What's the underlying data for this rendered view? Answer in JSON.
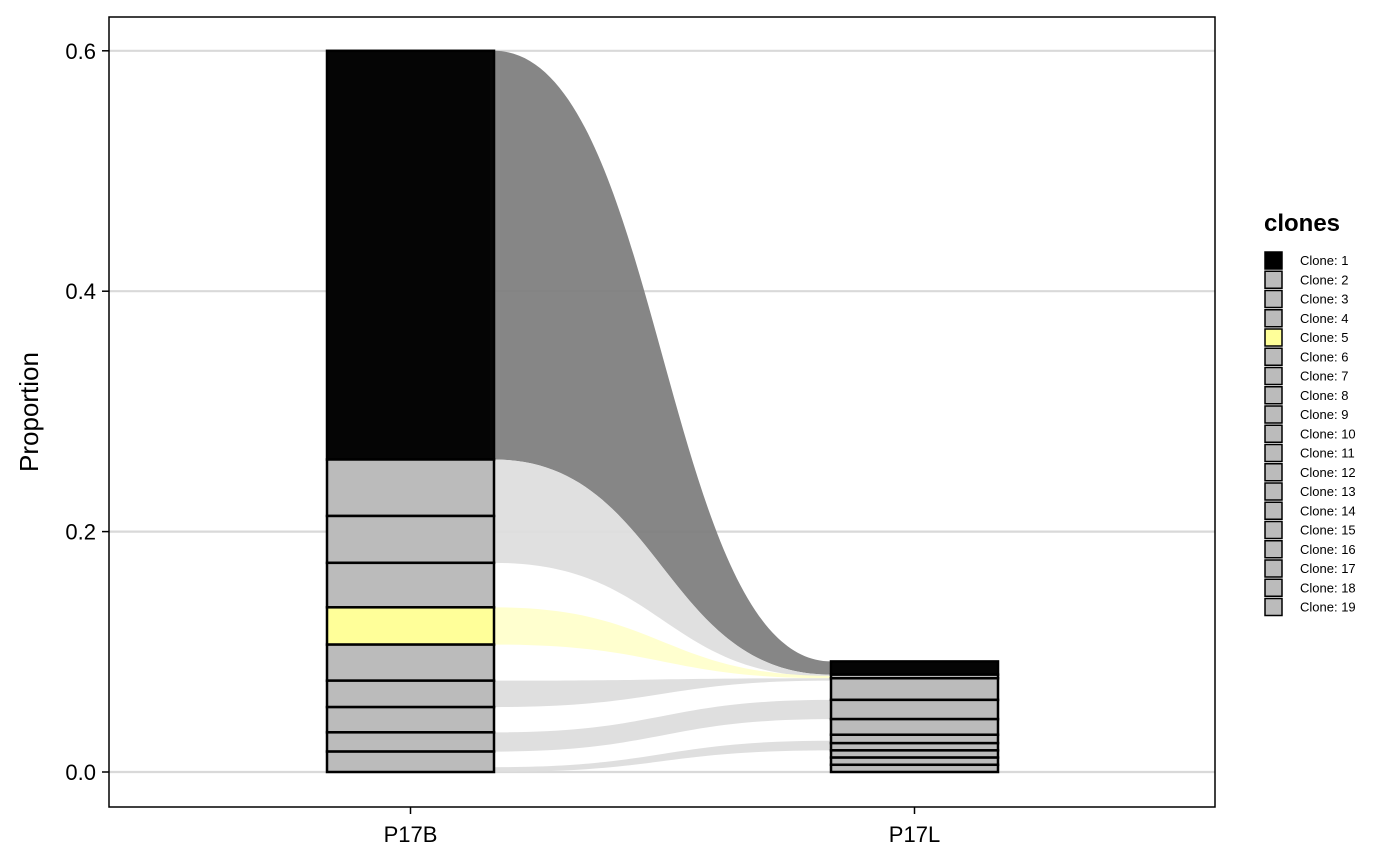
{
  "chart_data": {
    "type": "alluvial",
    "ylabel": "Proportion",
    "xlabel": "",
    "categories": [
      "P17B",
      "P17L"
    ],
    "yticks": [
      "0.0",
      "0.2",
      "0.4",
      "0.6"
    ],
    "ylim": [
      -0.03,
      0.63
    ],
    "grid": "horizontal major lines",
    "legend": {
      "title": "clones",
      "position": "right",
      "items": [
        {
          "label": "Clone: 1",
          "color": "#000000"
        },
        {
          "label": "Clone: 2",
          "color": "#bbbbbb"
        },
        {
          "label": "Clone: 3",
          "color": "#bbbbbb"
        },
        {
          "label": "Clone: 4",
          "color": "#bbbbbb"
        },
        {
          "label": "Clone: 5",
          "color": "#ffff99"
        },
        {
          "label": "Clone: 6",
          "color": "#bbbbbb"
        },
        {
          "label": "Clone: 7",
          "color": "#bbbbbb"
        },
        {
          "label": "Clone: 8",
          "color": "#bbbbbb"
        },
        {
          "label": "Clone: 9",
          "color": "#bbbbbb"
        },
        {
          "label": "Clone: 10",
          "color": "#bbbbbb"
        },
        {
          "label": "Clone: 11",
          "color": "#bbbbbb"
        },
        {
          "label": "Clone: 12",
          "color": "#bbbbbb"
        },
        {
          "label": "Clone: 13",
          "color": "#bbbbbb"
        },
        {
          "label": "Clone: 14",
          "color": "#bbbbbb"
        },
        {
          "label": "Clone: 15",
          "color": "#bbbbbb"
        },
        {
          "label": "Clone: 16",
          "color": "#bbbbbb"
        },
        {
          "label": "Clone: 17",
          "color": "#bbbbbb"
        },
        {
          "label": "Clone: 18",
          "color": "#bbbbbb"
        },
        {
          "label": "Clone: 19",
          "color": "#bbbbbb"
        }
      ]
    },
    "stacks": [
      {
        "sample": "P17B",
        "segments": [
          {
            "clone": "Clone: 1",
            "bottom": 0.26,
            "top": 0.6,
            "color": "#050505"
          },
          {
            "clone": "",
            "bottom": 0.213,
            "top": 0.26,
            "color": "#bbbbbb"
          },
          {
            "clone": "",
            "bottom": 0.174,
            "top": 0.213,
            "color": "#bbbbbb"
          },
          {
            "clone": "",
            "bottom": 0.137,
            "top": 0.174,
            "color": "#bbbbbb"
          },
          {
            "clone": "Clone: 5",
            "bottom": 0.106,
            "top": 0.137,
            "color": "#ffff99"
          },
          {
            "clone": "",
            "bottom": 0.076,
            "top": 0.106,
            "color": "#bbbbbb"
          },
          {
            "clone": "",
            "bottom": 0.054,
            "top": 0.076,
            "color": "#bbbbbb"
          },
          {
            "clone": "",
            "bottom": 0.033,
            "top": 0.054,
            "color": "#bbbbbb"
          },
          {
            "clone": "",
            "bottom": 0.017,
            "top": 0.033,
            "color": "#bbbbbb"
          },
          {
            "clone": "",
            "bottom": 0.0,
            "top": 0.017,
            "color": "#bbbbbb"
          }
        ]
      },
      {
        "sample": "P17L",
        "segments": [
          {
            "clone": "Clone: 1",
            "bottom": 0.081,
            "top": 0.092,
            "color": "#050505"
          },
          {
            "clone": "",
            "bottom": 0.078,
            "top": 0.081,
            "color": "#bbbbbb"
          },
          {
            "clone": "",
            "bottom": 0.06,
            "top": 0.078,
            "color": "#bbbbbb"
          },
          {
            "clone": "",
            "bottom": 0.044,
            "top": 0.06,
            "color": "#bbbbbb"
          },
          {
            "clone": "",
            "bottom": 0.031,
            "top": 0.044,
            "color": "#bbbbbb"
          },
          {
            "clone": "",
            "bottom": 0.024,
            "top": 0.031,
            "color": "#bbbbbb"
          },
          {
            "clone": "",
            "bottom": 0.018,
            "top": 0.024,
            "color": "#bbbbbb"
          },
          {
            "clone": "",
            "bottom": 0.012,
            "top": 0.018,
            "color": "#bbbbbb"
          },
          {
            "clone": "",
            "bottom": 0.006,
            "top": 0.012,
            "color": "#bbbbbb"
          },
          {
            "clone": "",
            "bottom": 0.0,
            "top": 0.006,
            "color": "#bbbbbb"
          }
        ]
      }
    ],
    "flows": [
      {
        "clone": "Clone: 1",
        "from": [
          0.26,
          0.6
        ],
        "to": [
          0.081,
          0.092
        ],
        "color": "#808080"
      },
      {
        "clone": "",
        "from": [
          0.174,
          0.26
        ],
        "to": [
          0.079,
          0.081
        ],
        "color": "#dedede"
      },
      {
        "clone": "Clone: 5",
        "from": [
          0.106,
          0.137
        ],
        "to": [
          0.078,
          0.08
        ],
        "color": "#ffffcc"
      },
      {
        "clone": "",
        "from": [
          0.054,
          0.076
        ],
        "to": [
          0.076,
          0.078
        ],
        "color": "#dddddd"
      },
      {
        "clone": "",
        "from": [
          0.017,
          0.033
        ],
        "to": [
          0.044,
          0.06
        ],
        "color": "#dddddd"
      },
      {
        "clone": "",
        "from": [
          0.0,
          0.004
        ],
        "to": [
          0.018,
          0.026
        ],
        "color": "#dddddd"
      }
    ]
  }
}
